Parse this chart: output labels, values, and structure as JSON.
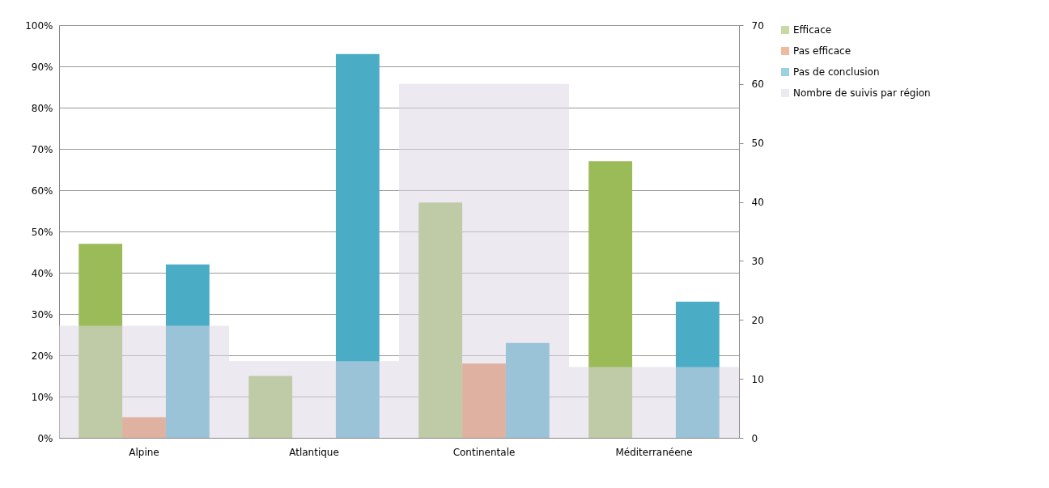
{
  "chart_data": {
    "type": "bar",
    "categories": [
      "Alpine",
      "Atlantique",
      "Continentale",
      "Méditerranéene"
    ],
    "series": [
      {
        "name": "Efficace",
        "color": "#9bbb59",
        "values": [
          47,
          15,
          57,
          67
        ]
      },
      {
        "name": "Pas efficace",
        "color": "#e0834f",
        "values": [
          5,
          null,
          18,
          null
        ]
      },
      {
        "name": "Pas de conclusion",
        "color": "#4bacc6",
        "values": [
          42,
          93,
          23,
          33
        ]
      },
      {
        "name": "Nombre de suivis par région",
        "color": "#dcd7e6",
        "axis": "y2",
        "values": [
          19,
          13,
          60,
          12
        ]
      }
    ],
    "ylim": [
      0,
      100
    ],
    "yticks": [
      {
        "value": 0,
        "label": "0%"
      },
      {
        "value": 10,
        "label": "10%"
      },
      {
        "value": 20,
        "label": "20%"
      },
      {
        "value": 30,
        "label": "30%"
      },
      {
        "value": 40,
        "label": "40%"
      },
      {
        "value": 50,
        "label": "50%"
      },
      {
        "value": 60,
        "label": "60%"
      },
      {
        "value": 70,
        "label": "70%"
      },
      {
        "value": 80,
        "label": "80%"
      },
      {
        "value": 90,
        "label": "90%"
      },
      {
        "value": 100,
        "label": "100%"
      }
    ],
    "y2lim": [
      0,
      70
    ],
    "y2ticks": [
      0,
      10,
      20,
      30,
      40,
      50,
      60,
      70
    ],
    "grid": "y",
    "legend": "right"
  }
}
